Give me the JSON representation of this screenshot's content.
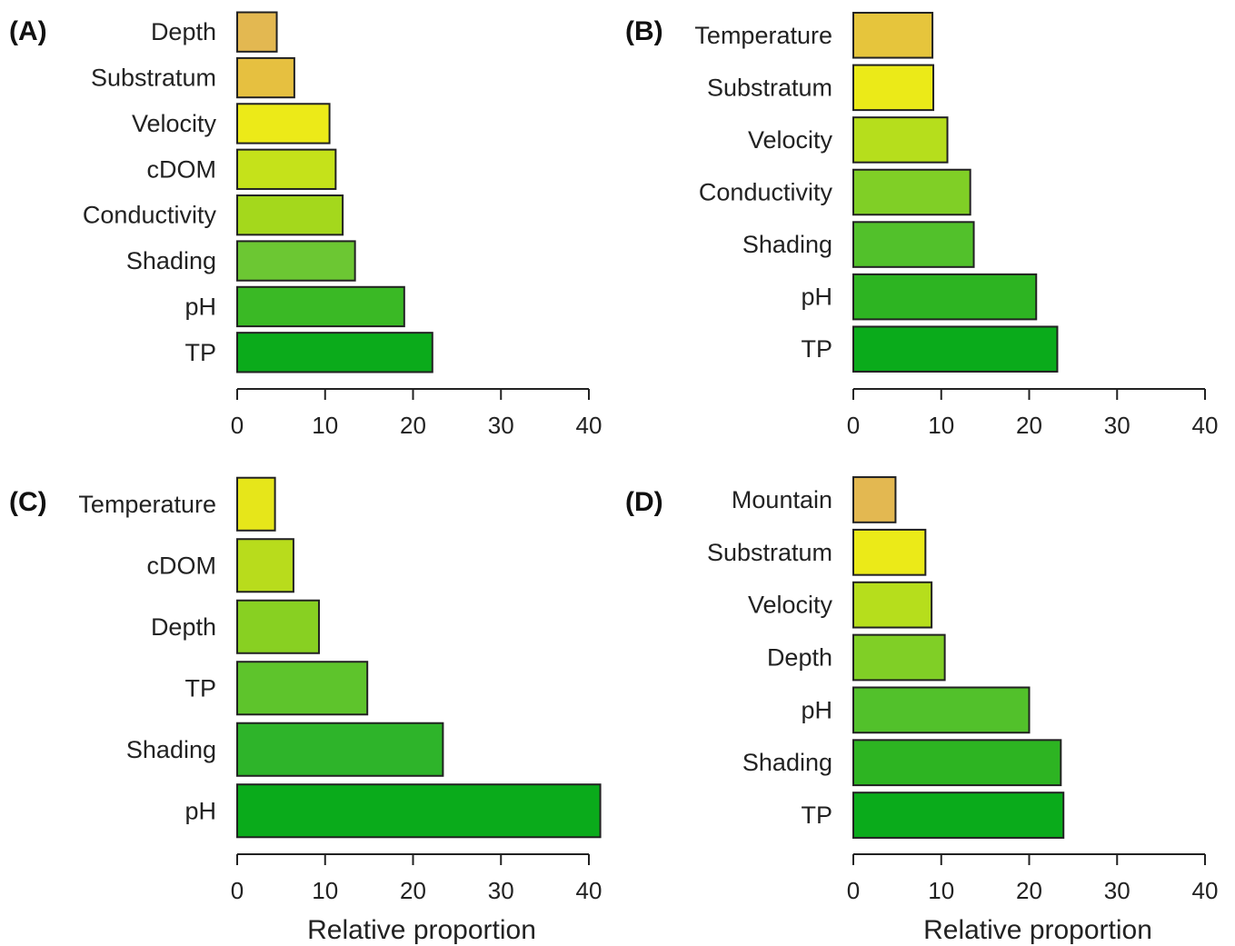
{
  "chart_data": [
    {
      "type": "bar",
      "orientation": "horizontal",
      "panel": "(A)",
      "categories": [
        "Depth",
        "Substratum",
        "Velocity",
        "cDOM",
        "Conductivity",
        "Shading",
        "pH",
        "TP"
      ],
      "values": [
        4.5,
        6.5,
        10.5,
        11.2,
        12.0,
        13.4,
        19.0,
        22.2
      ],
      "colors": [
        "#e3b851",
        "#e6c040",
        "#ecea18",
        "#c5e21a",
        "#a4d81c",
        "#6cc733",
        "#3ab925",
        "#0bab1b"
      ],
      "xlabel": "",
      "xticks": [
        "0",
        "10",
        "20",
        "30",
        "40"
      ],
      "xlim": [
        0,
        40
      ]
    },
    {
      "type": "bar",
      "orientation": "horizontal",
      "panel": "(B)",
      "categories": [
        "Temperature",
        "Substratum",
        "Velocity",
        "Conductivity",
        "Shading",
        "pH",
        "TP"
      ],
      "values": [
        9.0,
        9.1,
        10.7,
        13.3,
        13.7,
        20.8,
        23.2
      ],
      "colors": [
        "#e6c53c",
        "#ebea18",
        "#b6de1c",
        "#80cf26",
        "#52c12b",
        "#2db422",
        "#0aab1b"
      ],
      "xlabel": "",
      "xticks": [
        "0",
        "10",
        "20",
        "30",
        "40"
      ],
      "xlim": [
        0,
        40
      ]
    },
    {
      "type": "bar",
      "orientation": "horizontal",
      "panel": "(C)",
      "categories": [
        "Temperature",
        "cDOM",
        "Depth",
        "TP",
        "Shading",
        "pH"
      ],
      "values": [
        4.3,
        6.4,
        9.3,
        14.8,
        23.4,
        41.3
      ],
      "colors": [
        "#e6e61a",
        "#b8dc1c",
        "#88d022",
        "#5ec42c",
        "#2eb42a",
        "#0aab1b"
      ],
      "xlabel": "Relative proportion",
      "xticks": [
        "0",
        "10",
        "20",
        "30",
        "40"
      ],
      "xlim": [
        0,
        40
      ]
    },
    {
      "type": "bar",
      "orientation": "horizontal",
      "panel": "(D)",
      "categories": [
        "Mountain",
        "Substratum",
        "Velocity",
        "Depth",
        "pH",
        "Shading",
        "TP"
      ],
      "values": [
        4.8,
        8.2,
        8.9,
        10.4,
        20.0,
        23.6,
        23.9
      ],
      "colors": [
        "#e3b851",
        "#ebea18",
        "#b6de1c",
        "#80cf26",
        "#52c12b",
        "#2db422",
        "#0aab1b"
      ],
      "xlabel": "Relative proportion",
      "xticks": [
        "0",
        "10",
        "20",
        "30",
        "40"
      ],
      "xlim": [
        0,
        40
      ]
    }
  ]
}
